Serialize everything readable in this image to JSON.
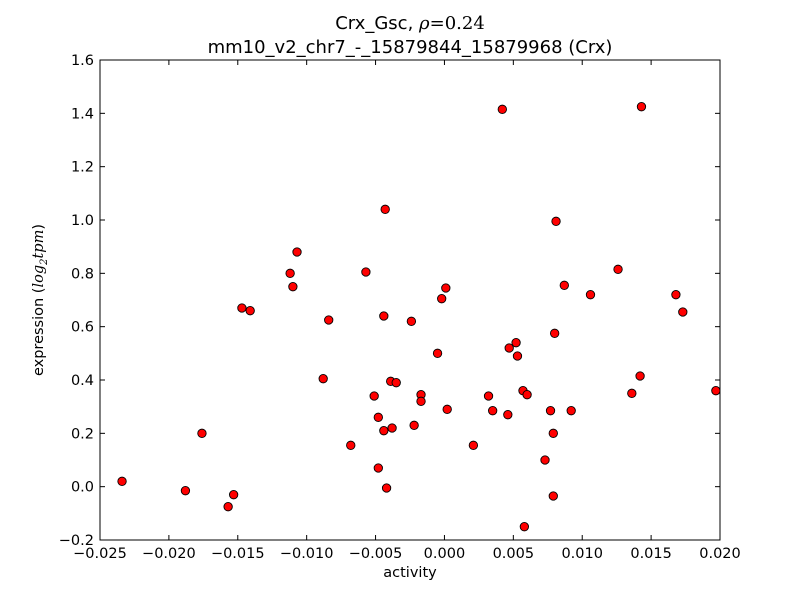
{
  "chart_data": {
    "type": "scatter",
    "title": {
      "line1_prefix": "Crx_Gsc, ",
      "line1_rho_symbol": "ρ",
      "line1_rho_value": "=0.24",
      "line2": "mm10_v2_chr7_-_15879844_15879968 (Crx)"
    },
    "xlabel": "activity",
    "ylabel": {
      "prefix": "expression (",
      "math_base": "log",
      "math_sub": "2",
      "math_rest": "tpm",
      "suffix": ")"
    },
    "xlim": [
      -0.025,
      0.02
    ],
    "ylim": [
      -0.2,
      1.6
    ],
    "xticks": [
      -0.025,
      -0.02,
      -0.015,
      -0.01,
      -0.005,
      0.0,
      0.005,
      0.01,
      0.015,
      0.02
    ],
    "xtick_labels": [
      "−0.025",
      "−0.020",
      "−0.015",
      "−0.010",
      "−0.005",
      "0.000",
      "0.005",
      "0.010",
      "0.015",
      "0.020"
    ],
    "yticks": [
      -0.2,
      0.0,
      0.2,
      0.4,
      0.6,
      0.8,
      1.0,
      1.2,
      1.4,
      1.6
    ],
    "ytick_labels": [
      "−0.2",
      "0.0",
      "0.2",
      "0.4",
      "0.6",
      "0.8",
      "1.0",
      "1.2",
      "1.4",
      "1.6"
    ],
    "grid": false,
    "legend": "none",
    "marker_color": "#ff0000",
    "marker_edge": "#000000",
    "points": [
      {
        "x": -0.0234,
        "y": 0.02
      },
      {
        "x": -0.0188,
        "y": -0.015
      },
      {
        "x": -0.0176,
        "y": 0.2
      },
      {
        "x": -0.0157,
        "y": -0.075
      },
      {
        "x": -0.0153,
        "y": -0.03
      },
      {
        "x": -0.0147,
        "y": 0.67
      },
      {
        "x": -0.0141,
        "y": 0.66
      },
      {
        "x": -0.0112,
        "y": 0.8
      },
      {
        "x": -0.011,
        "y": 0.75
      },
      {
        "x": -0.0107,
        "y": 0.88
      },
      {
        "x": -0.0088,
        "y": 0.405
      },
      {
        "x": -0.0084,
        "y": 0.625
      },
      {
        "x": -0.0068,
        "y": 0.155
      },
      {
        "x": -0.0057,
        "y": 0.805
      },
      {
        "x": -0.0051,
        "y": 0.34
      },
      {
        "x": -0.0048,
        "y": 0.26
      },
      {
        "x": -0.0048,
        "y": 0.07
      },
      {
        "x": -0.0044,
        "y": 0.64
      },
      {
        "x": -0.0044,
        "y": 0.21
      },
      {
        "x": -0.0043,
        "y": 1.04
      },
      {
        "x": -0.0042,
        "y": -0.005
      },
      {
        "x": -0.0039,
        "y": 0.395
      },
      {
        "x": -0.0038,
        "y": 0.22
      },
      {
        "x": -0.0035,
        "y": 0.39
      },
      {
        "x": -0.0024,
        "y": 0.62
      },
      {
        "x": -0.0022,
        "y": 0.23
      },
      {
        "x": -0.0017,
        "y": 0.345
      },
      {
        "x": -0.0017,
        "y": 0.32
      },
      {
        "x": -0.0005,
        "y": 0.5
      },
      {
        "x": -0.0002,
        "y": 0.705
      },
      {
        "x": 0.0001,
        "y": 0.745
      },
      {
        "x": 0.0002,
        "y": 0.29
      },
      {
        "x": 0.0021,
        "y": 0.155
      },
      {
        "x": 0.0032,
        "y": 0.34
      },
      {
        "x": 0.0035,
        "y": 0.285
      },
      {
        "x": 0.0042,
        "y": 1.415
      },
      {
        "x": 0.0046,
        "y": 0.27
      },
      {
        "x": 0.0047,
        "y": 0.52
      },
      {
        "x": 0.0052,
        "y": 0.54
      },
      {
        "x": 0.0053,
        "y": 0.49
      },
      {
        "x": 0.0057,
        "y": 0.36
      },
      {
        "x": 0.0058,
        "y": -0.15
      },
      {
        "x": 0.006,
        "y": 0.345
      },
      {
        "x": 0.0073,
        "y": 0.1
      },
      {
        "x": 0.0077,
        "y": 0.285
      },
      {
        "x": 0.0079,
        "y": 0.2
      },
      {
        "x": 0.0079,
        "y": -0.035
      },
      {
        "x": 0.008,
        "y": 0.575
      },
      {
        "x": 0.0081,
        "y": 0.995
      },
      {
        "x": 0.0087,
        "y": 0.755
      },
      {
        "x": 0.0092,
        "y": 0.285
      },
      {
        "x": 0.0106,
        "y": 0.72
      },
      {
        "x": 0.0126,
        "y": 0.815
      },
      {
        "x": 0.0136,
        "y": 0.35
      },
      {
        "x": 0.0142,
        "y": 0.415
      },
      {
        "x": 0.0143,
        "y": 1.425
      },
      {
        "x": 0.0168,
        "y": 0.72
      },
      {
        "x": 0.0173,
        "y": 0.655
      },
      {
        "x": 0.0197,
        "y": 0.36
      }
    ]
  }
}
